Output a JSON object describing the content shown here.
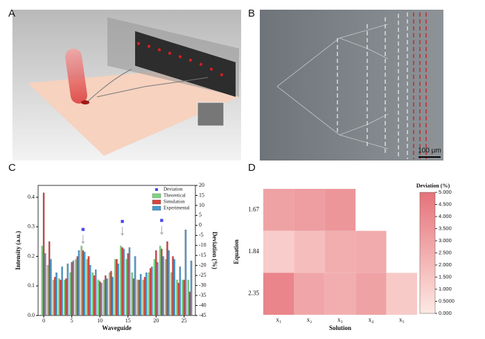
{
  "panel_labels": [
    "A",
    "B",
    "C",
    "D"
  ],
  "scale_bar": "100 μm",
  "chart_data": [
    {
      "type": "bar",
      "x_label": "Waveguide",
      "y_label": "Intensity (a.u.)",
      "y2_label": "Deviation (%)",
      "x": [
        0,
        1,
        2,
        3,
        4,
        5,
        6,
        7,
        8,
        9,
        10,
        11,
        12,
        13,
        14,
        15,
        16,
        17,
        18,
        19,
        20,
        21,
        22,
        23,
        24,
        25,
        26
      ],
      "series": [
        {
          "name": "Deviation",
          "color": "#4a4af0",
          "type": "scatter",
          "axis": "y2",
          "x": [
            7,
            14,
            21
          ],
          "values": [
            -2,
            2,
            2.5
          ]
        },
        {
          "name": "Theoretical",
          "color": "#7fd67f",
          "values": [
            0.235,
            0.17,
            0.12,
            0.125,
            0.12,
            0.145,
            0.19,
            0.235,
            0.19,
            0.145,
            0.12,
            0.12,
            0.145,
            0.19,
            0.235,
            0.19,
            0.145,
            0.12,
            0.12,
            0.145,
            0.19,
            0.235,
            0.19,
            0.145,
            0.12,
            0.12,
            0.12
          ]
        },
        {
          "name": "Simulation",
          "color": "#d9443f",
          "values": [
            0.415,
            0.25,
            0.13,
            0.12,
            0.125,
            0.18,
            0.2,
            0.22,
            0.2,
            0.135,
            0.115,
            0.135,
            0.15,
            0.19,
            0.23,
            0.21,
            0.125,
            0.12,
            0.13,
            0.16,
            0.22,
            0.225,
            0.25,
            0.2,
            0.11,
            0.12,
            0.08
          ]
        },
        {
          "name": "Experimental",
          "color": "#4a9ad4",
          "values": [
            0.21,
            0.19,
            0.145,
            0.165,
            0.175,
            0.185,
            0.22,
            0.215,
            0.17,
            0.155,
            0.11,
            0.125,
            0.13,
            0.175,
            0.225,
            0.23,
            0.2,
            0.14,
            0.145,
            0.165,
            0.18,
            0.2,
            0.22,
            0.19,
            0.165,
            0.29,
            0.185
          ]
        }
      ],
      "xlim": [
        -1,
        27
      ],
      "xticks": [
        0,
        5,
        10,
        15,
        20,
        25
      ],
      "ylim": [
        0,
        0.44
      ],
      "yticks": [
        {
          "value": 0,
          "label": "0.0"
        },
        0.1,
        0.2,
        0.3,
        0.4
      ],
      "y2lim": [
        -45,
        20
      ],
      "y2ticks": [
        20,
        15,
        10,
        5,
        0,
        -5,
        -10,
        -15,
        -20,
        -25,
        -30,
        -35,
        -40,
        -45
      ],
      "legend": "upper right"
    },
    {
      "type": "heatmap",
      "x_label": "Solution",
      "y_label": "Equation",
      "colorbar_label": "Deviation (%)",
      "x": [
        "x₁",
        "x₂",
        "x₃",
        "x₄",
        "x₅"
      ],
      "y": [
        "1.67",
        "1.84",
        "2.35"
      ],
      "values": [
        [
          3.0,
          3.2,
          3.5,
          null,
          null
        ],
        [
          1.2,
          1.8,
          2.5,
          2.6,
          null
        ],
        [
          4.2,
          2.8,
          2.5,
          3.0,
          1.3
        ]
      ],
      "zlim": [
        0,
        5
      ],
      "zticks": [
        {
          "value": 0,
          "label": "0.000"
        },
        {
          "value": 0.5,
          "label": "0.5000"
        },
        {
          "value": 1,
          "label": "1.000"
        },
        {
          "value": 1.5,
          "label": "1.500"
        },
        {
          "value": 2,
          "label": "2.000"
        },
        {
          "value": 2.5,
          "label": "2.500"
        },
        {
          "value": 3,
          "label": "3.000"
        },
        {
          "value": 3.5,
          "label": "3.500"
        },
        {
          "value": 4,
          "label": "4.000"
        },
        {
          "value": 4.5,
          "label": "4.500"
        },
        {
          "value": 5,
          "label": "5.000"
        }
      ],
      "cmap": [
        "#fde9e3",
        "#e6727a"
      ]
    }
  ]
}
